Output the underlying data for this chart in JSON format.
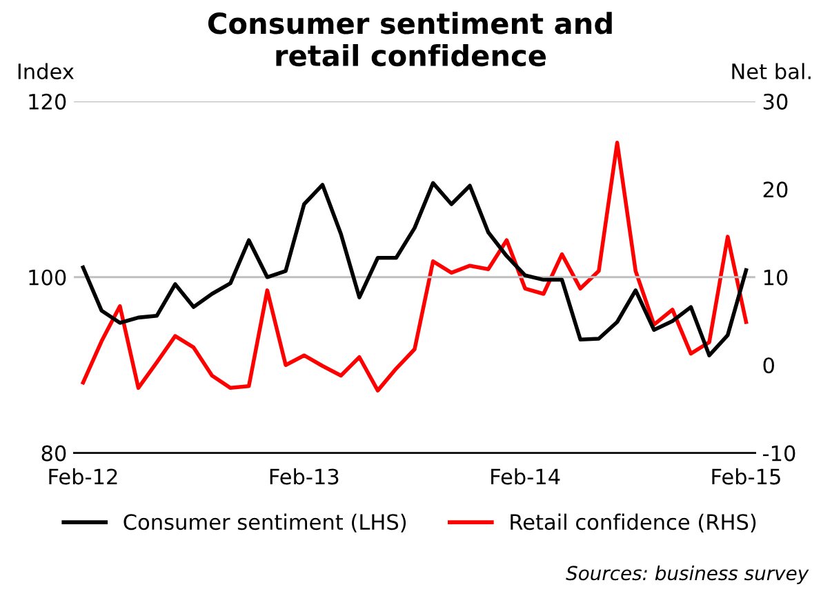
{
  "chart_data": {
    "type": "line",
    "title": "Consumer sentiment and\nretail confidence",
    "ylabel": "Index",
    "y2label": "Net bal.",
    "categories": [
      "Feb-12",
      null,
      null,
      null,
      null,
      null,
      null,
      null,
      null,
      null,
      null,
      null,
      "Feb-13",
      null,
      null,
      null,
      null,
      null,
      null,
      null,
      null,
      null,
      null,
      null,
      "Feb-14",
      null,
      null,
      null,
      null,
      null,
      null,
      null,
      null,
      null,
      null,
      null,
      "Feb-15"
    ],
    "series": [
      {
        "name": "Consumer sentiment (LHS)",
        "color": "#000000",
        "values": [
          101.1,
          96.2,
          94.8,
          95.4,
          95.6,
          99.2,
          96.6,
          98.1,
          99.3,
          104.2,
          100.0,
          100.7,
          108.3,
          110.5,
          104.9,
          97.7,
          102.2,
          102.2,
          105.6,
          110.7,
          108.3,
          110.4,
          105.1,
          102.4,
          100.2,
          99.7,
          99.7,
          92.9,
          93.0,
          94.9,
          98.5,
          94.0,
          95.0,
          96.6,
          91.1,
          93.4,
          100.8
        ]
      },
      {
        "name": "Retail confidence (RHS)",
        "color": "#ff0000",
        "axis": "y2",
        "values": [
          -2.0,
          2.7,
          6.7,
          -2.6,
          0.3,
          3.3,
          2.0,
          -1.2,
          -2.6,
          -2.4,
          8.5,
          0.0,
          1.1,
          -0.1,
          -1.2,
          0.9,
          -2.9,
          -0.4,
          1.8,
          11.8,
          10.5,
          11.3,
          10.9,
          14.2,
          8.7,
          8.1,
          12.6,
          8.7,
          10.7,
          25.3,
          10.7,
          4.6,
          6.3,
          1.3,
          2.6,
          14.6,
          4.9
        ]
      }
    ],
    "ylim": [
      80,
      120
    ],
    "yticks": [
      80,
      100,
      120
    ],
    "y2lim": [
      -10,
      30
    ],
    "y2ticks": [
      -10,
      0,
      10,
      20,
      30
    ],
    "grid": "y",
    "legend": "bottom",
    "line_style": "solid",
    "annotations": [
      "Sources: business survey"
    ]
  }
}
